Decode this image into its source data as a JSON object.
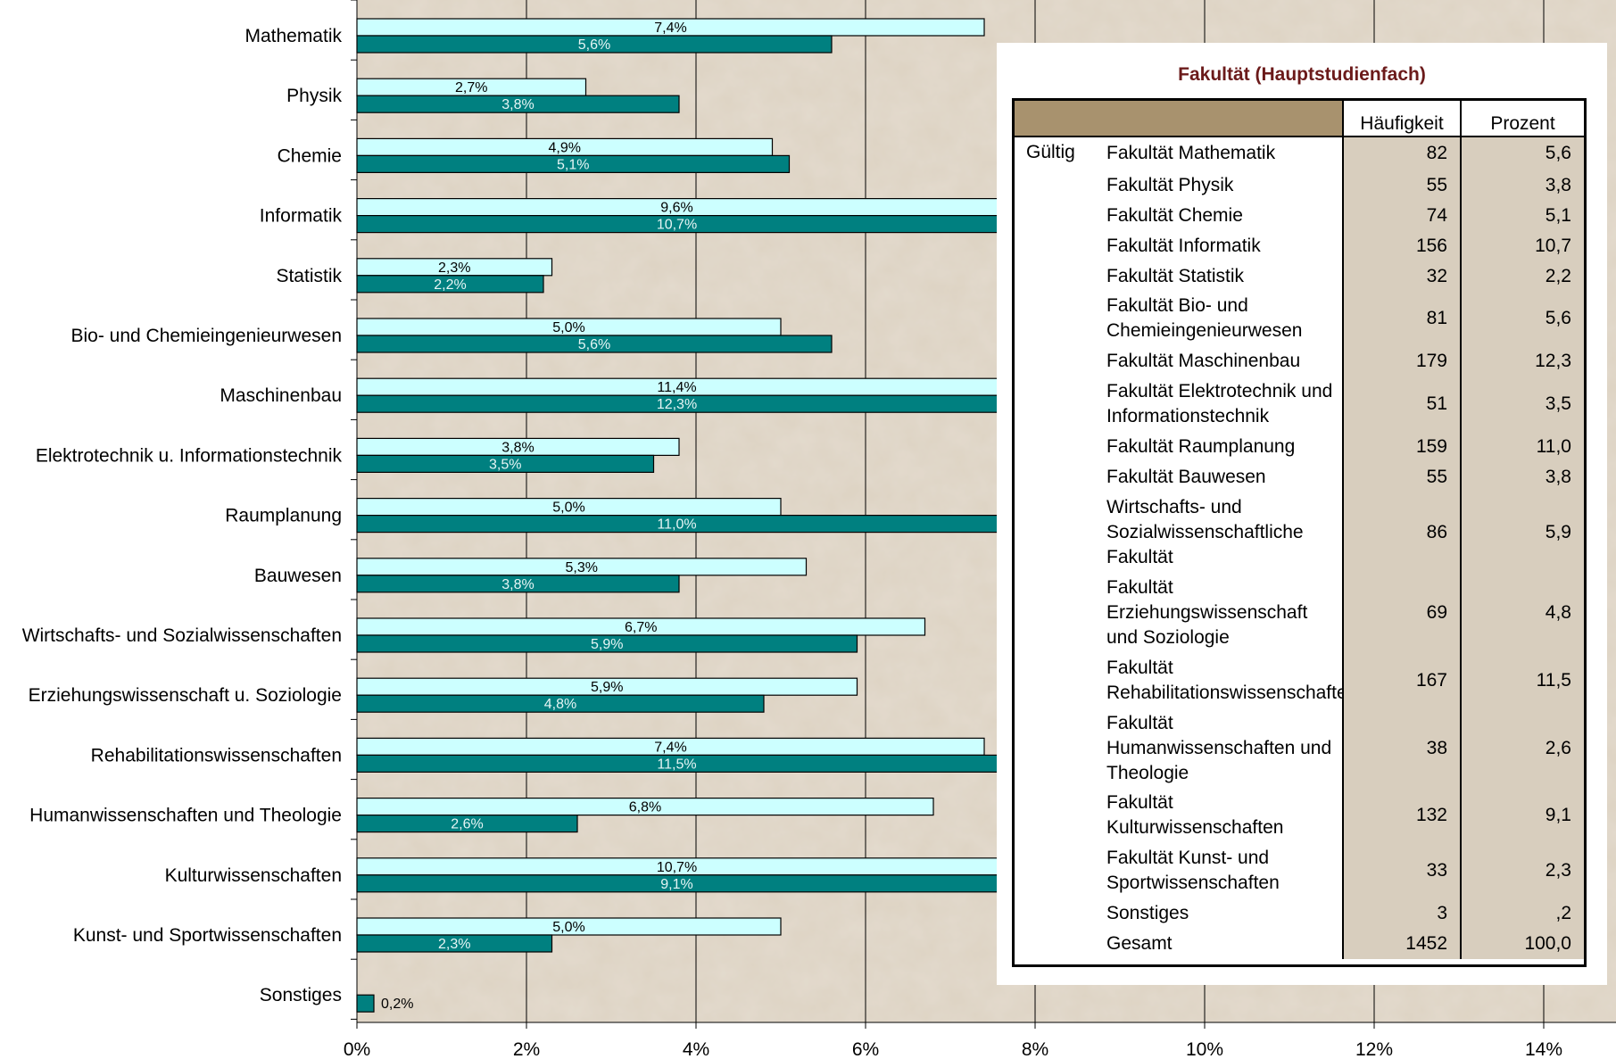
{
  "chart_data": {
    "type": "bar",
    "orientation": "horizontal",
    "categories": [
      "Mathematik",
      "Physik",
      "Chemie",
      "Informatik",
      "Statistik",
      "Bio- und Chemieingenieurwesen",
      "Maschinenbau",
      "Elektrotechnik u. Informationstechnik",
      "Raumplanung",
      "Bauwesen",
      "Wirtschafts- und Sozialwissenschaften",
      "Erziehungswissenschaft u. Soziologie",
      "Rehabilitationswissenschaften",
      "Humanwissenschaften und Theologie",
      "Kulturwissenschaften",
      "Kunst- und Sportwissenschaften",
      "Sonstiges"
    ],
    "series": [
      {
        "values": [
          7.4,
          2.7,
          4.9,
          9.6,
          2.3,
          5.0,
          11.4,
          3.8,
          5.0,
          5.3,
          6.7,
          5.9,
          7.4,
          6.8,
          10.7,
          5.0,
          null
        ],
        "labels": [
          "7,4%",
          "2,7%",
          "4,9%",
          "9,6%",
          "2,3%",
          "5,0%",
          "11,4%",
          "3,8%",
          "5,0%",
          "5,3%",
          "6,7%",
          "5,9%",
          "7,4%",
          "6,8%",
          "10,7%",
          "5,0%",
          ""
        ],
        "color": "#ccffff"
      },
      {
        "values": [
          5.6,
          3.8,
          5.1,
          10.7,
          2.2,
          5.6,
          12.3,
          3.5,
          11.0,
          3.8,
          5.9,
          4.8,
          11.5,
          2.6,
          9.1,
          2.3,
          0.2
        ],
        "labels": [
          "5,6%",
          "3,8%",
          "5,1%",
          "10,7%",
          "2,2%",
          "5,6%",
          "12,3%",
          "3,5%",
          "11,0%",
          "3,8%",
          "5,9%",
          "4,8%",
          "11,5%",
          "2,6%",
          "9,1%",
          "2,3%",
          "0,2%"
        ],
        "color": "#008080"
      }
    ],
    "xlim": [
      0,
      14
    ],
    "xticks": [
      "0%",
      "2%",
      "4%",
      "6%",
      "8%",
      "10%",
      "12%",
      "14%"
    ],
    "grid": true,
    "title": "",
    "xlabel": "",
    "ylabel": ""
  },
  "table": {
    "title": "Fakultät (Hauptstudienfach)",
    "headers": [
      "Häufigkeit",
      "Prozent"
    ],
    "group_label": "Gültig",
    "rows": [
      {
        "label": "Fakultät Mathematik",
        "count": "82",
        "percent": "5,6"
      },
      {
        "label": "Fakultät Physik",
        "count": "55",
        "percent": "3,8"
      },
      {
        "label": "Fakultät Chemie",
        "count": "74",
        "percent": "5,1"
      },
      {
        "label": "Fakultät Informatik",
        "count": "156",
        "percent": "10,7"
      },
      {
        "label": "Fakultät Statistik",
        "count": "32",
        "percent": "2,2"
      },
      {
        "label": "Fakultät Bio- und Chemieingenieurwesen",
        "count": "81",
        "percent": "5,6"
      },
      {
        "label": "Fakultät Maschinenbau",
        "count": "179",
        "percent": "12,3"
      },
      {
        "label": "Fakultät Elektrotechnik und Informationstechnik",
        "count": "51",
        "percent": "3,5"
      },
      {
        "label": "Fakultät Raumplanung",
        "count": "159",
        "percent": "11,0"
      },
      {
        "label": "Fakultät Bauwesen",
        "count": "55",
        "percent": "3,8"
      },
      {
        "label": "Wirtschafts- und Sozialwissenschaftliche Fakultät",
        "count": "86",
        "percent": "5,9"
      },
      {
        "label": "Fakultät Erziehungswissenschaft und Soziologie",
        "count": "69",
        "percent": "4,8"
      },
      {
        "label": "Fakultät Rehabilitationswissenschaften",
        "count": "167",
        "percent": "11,5"
      },
      {
        "label": "Fakultät Humanwissenschaften und Theologie",
        "count": "38",
        "percent": "2,6"
      },
      {
        "label": "Fakultät Kulturwissenschaften",
        "count": "132",
        "percent": "9,1"
      },
      {
        "label": "Fakultät Kunst- und Sportwissenschaften",
        "count": "33",
        "percent": "2,3"
      },
      {
        "label": "Sonstiges",
        "count": "3",
        "percent": ",2"
      },
      {
        "label": "Gesamt",
        "count": "1452",
        "percent": "100,0"
      }
    ]
  }
}
